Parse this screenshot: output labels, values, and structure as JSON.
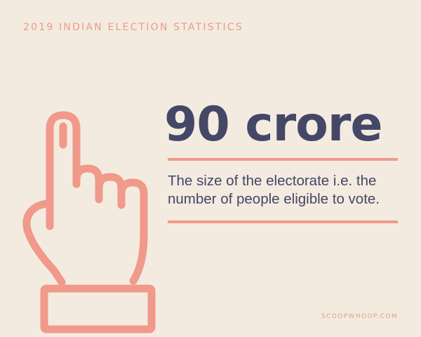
{
  "header": {
    "kicker": "2019 INDIAN ELECTION STATISTICS"
  },
  "stat": {
    "value": "90 crore",
    "description": "The size of the electorate i.e. the number of people eligible to vote."
  },
  "footer": {
    "brand": "SCOOPWHOOP.COM"
  },
  "illustration": {
    "icon": "voting-hand-icon",
    "accent_color": "#f1998a"
  },
  "colors": {
    "background": "#f3ebe0",
    "accent": "#f1998a",
    "text_dark": "#444766"
  }
}
